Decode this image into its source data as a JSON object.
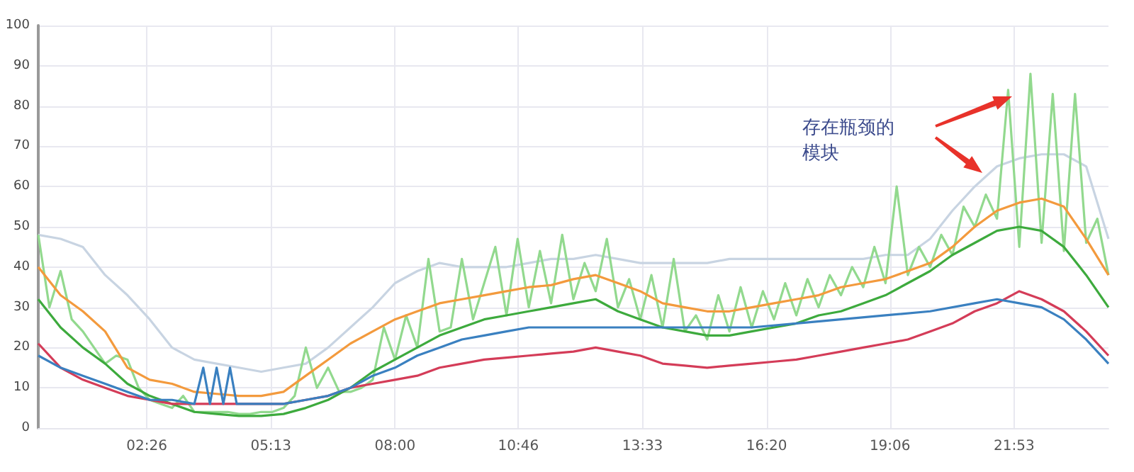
{
  "chart_data": {
    "type": "line",
    "x": [
      0,
      0.5,
      1,
      1.5,
      2,
      2.5,
      3,
      3.5,
      4,
      4.5,
      5,
      5.5,
      6,
      6.5,
      7,
      7.5,
      8,
      8.5,
      9,
      9.5,
      10,
      10.5,
      11,
      11.5,
      12,
      12.5,
      13,
      13.5,
      14,
      14.5,
      15,
      15.5,
      16,
      16.5,
      17,
      17.5,
      18,
      18.5,
      19,
      19.5,
      20,
      20.5,
      21,
      21.5,
      22,
      22.5,
      23,
      23.5,
      24
    ],
    "series": [
      {
        "color": "#c8d4e2",
        "values": [
          48,
          47,
          45,
          38,
          33,
          27,
          20,
          17,
          16,
          15,
          14,
          15,
          16,
          20,
          25,
          30,
          36,
          39,
          41,
          40,
          40,
          40,
          41,
          42,
          42,
          43,
          42,
          41,
          41,
          41,
          41,
          42,
          42,
          42,
          42,
          42,
          42,
          42,
          43,
          43,
          47,
          54,
          60,
          65,
          67,
          68,
          68,
          65,
          47
        ]
      },
      {
        "color": "#92d98e",
        "x": [
          0,
          0.25,
          0.5,
          0.75,
          1,
          1.25,
          1.5,
          1.75,
          2,
          2.25,
          2.5,
          2.75,
          3,
          3.25,
          3.5,
          3.75,
          4,
          4.25,
          4.5,
          4.75,
          5,
          5.25,
          5.5,
          5.75,
          6,
          6.25,
          6.5,
          6.75,
          7,
          7.25,
          7.5,
          7.75,
          8,
          8.25,
          8.5,
          8.75,
          9,
          9.25,
          9.5,
          9.75,
          10,
          10.25,
          10.5,
          10.75,
          11,
          11.25,
          11.5,
          11.75,
          12,
          12.25,
          12.5,
          12.75,
          13,
          13.25,
          13.5,
          13.75,
          14,
          14.25,
          14.5,
          14.75,
          15,
          15.25,
          15.5,
          15.75,
          16,
          16.25,
          16.5,
          16.75,
          17,
          17.25,
          17.5,
          17.75,
          18,
          18.25,
          18.5,
          18.75,
          19,
          19.25,
          19.5,
          19.75,
          20,
          20.25,
          20.5,
          20.75,
          21,
          21.25,
          21.5,
          21.75,
          22,
          22.25,
          22.5,
          22.75,
          23,
          23.25,
          23.5,
          23.75,
          24
        ],
        "values": [
          48,
          30,
          39,
          27,
          24,
          20,
          16,
          18,
          17,
          10,
          7,
          6,
          5,
          8,
          4,
          4,
          4,
          4,
          3.5,
          3.5,
          4,
          4,
          5,
          8,
          20,
          10,
          15,
          9,
          9,
          10,
          12,
          25,
          17,
          28,
          20,
          42,
          24,
          25,
          42,
          27,
          36,
          45,
          28,
          47,
          30,
          44,
          31,
          48,
          32,
          41,
          34,
          47,
          30,
          37,
          27,
          38,
          25,
          42,
          24,
          28,
          22,
          33,
          24,
          35,
          25,
          34,
          27,
          36,
          28,
          37,
          30,
          38,
          33,
          40,
          35,
          45,
          36,
          60,
          38,
          45,
          40,
          48,
          43,
          55,
          50,
          58,
          52,
          84,
          45,
          88,
          46,
          83,
          44,
          83,
          46,
          52,
          38
        ]
      },
      {
        "color": "#f39a3d",
        "values": [
          40,
          33,
          29,
          24,
          15,
          12,
          11,
          9,
          8.5,
          8,
          8,
          9,
          13,
          17,
          21,
          24,
          27,
          29,
          31,
          32,
          33,
          34,
          35,
          35.5,
          37,
          38,
          36,
          34,
          31,
          30,
          29,
          29,
          30,
          31,
          32,
          33,
          35,
          36,
          37,
          39,
          41,
          45,
          50,
          54,
          56,
          57,
          55,
          47,
          38
        ]
      },
      {
        "color": "#3daa3d",
        "values": [
          32,
          25,
          20,
          16,
          11,
          8,
          6,
          4,
          3.5,
          3,
          3,
          3.5,
          5,
          7,
          10,
          14,
          17,
          20,
          23,
          25,
          27,
          28,
          29,
          30,
          31,
          32,
          29,
          27,
          25,
          24,
          23,
          23,
          24,
          25,
          26,
          28,
          29,
          31,
          33,
          36,
          39,
          43,
          46,
          49,
          50,
          49,
          45,
          38,
          30
        ]
      },
      {
        "color": "#d43c58",
        "x": [
          0,
          0.5,
          1,
          1.5,
          2,
          2.5,
          3,
          3.5,
          4,
          4.5,
          5,
          5.5,
          6,
          6.5,
          7,
          7.5,
          8,
          8.5,
          9,
          9.5,
          10,
          10.5,
          11,
          11.5,
          12,
          12.5,
          13,
          13.5,
          14,
          14.5,
          15,
          15.5,
          16,
          16.5,
          17,
          17.5,
          18,
          18.5,
          19,
          19.5,
          20,
          20.5,
          21,
          21.5,
          22,
          22.5,
          23,
          23.5,
          24
        ],
        "values": [
          21,
          15,
          12,
          10,
          8,
          7,
          6,
          6,
          6,
          6,
          6,
          6,
          7,
          8,
          10,
          11,
          12,
          13,
          15,
          16,
          17,
          17.5,
          18,
          18.5,
          19,
          20,
          19,
          18,
          16,
          15.5,
          15,
          15.5,
          16,
          16.5,
          17,
          18,
          19,
          20,
          21,
          22,
          24,
          26,
          29,
          31,
          34,
          32,
          29,
          24,
          18
        ]
      },
      {
        "color": "#3a80c0",
        "x": [
          0,
          0.5,
          1,
          1.5,
          2,
          2.5,
          3,
          3.5,
          3.7,
          3.85,
          4,
          4.15,
          4.3,
          4.45,
          4.6,
          5,
          5.5,
          6,
          6.5,
          7,
          7.5,
          8,
          8.5,
          9,
          9.5,
          10,
          10.5,
          11,
          11.5,
          12,
          13,
          14,
          15,
          16,
          17,
          18,
          19,
          20,
          21,
          21.5,
          22,
          22.5,
          23,
          23.5,
          24
        ],
        "values": [
          18,
          15,
          13,
          11,
          9,
          7,
          7,
          6,
          15,
          6,
          15,
          6,
          15,
          6,
          6,
          6,
          6,
          7,
          8,
          10,
          13,
          15,
          18,
          20,
          22,
          23,
          24,
          25,
          25,
          25,
          25,
          25,
          25,
          25,
          26,
          27,
          28,
          29,
          31,
          32,
          31,
          30,
          27,
          22,
          16
        ]
      }
    ],
    "xlim": [
      0,
      24
    ],
    "xticks": [
      {
        "value": 2.4333,
        "label": "02:26"
      },
      {
        "value": 5.2167,
        "label": "05:13"
      },
      {
        "value": 8,
        "label": "08:00"
      },
      {
        "value": 10.7667,
        "label": "10:46"
      },
      {
        "value": 13.55,
        "label": "13:33"
      },
      {
        "value": 16.3333,
        "label": "16:20"
      },
      {
        "value": 19.1,
        "label": "19:06"
      },
      {
        "value": 21.8833,
        "label": "21:53"
      }
    ],
    "ylim": [
      0,
      100
    ],
    "yticks": [
      0,
      10,
      20,
      30,
      40,
      50,
      60,
      70,
      80,
      90,
      100
    ],
    "grid": true,
    "marker": "none",
    "annotations": [
      "存在瓶颈的模块"
    ]
  }
}
